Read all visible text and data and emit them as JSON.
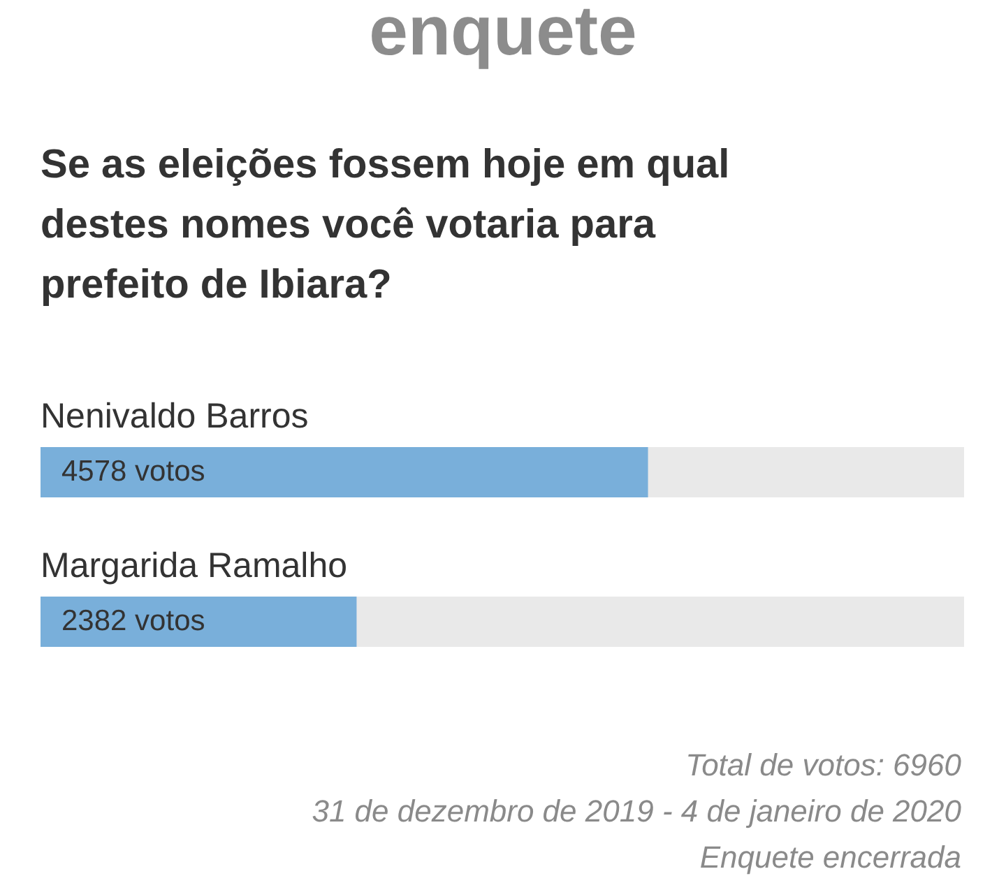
{
  "chart_data": {
    "type": "bar",
    "orientation": "horizontal",
    "title": "enquete",
    "subtitle": "Se as eleições fossem hoje em qual destes nomes você votaria para prefeito de Ibiara?",
    "categories": [
      "Nenivaldo Barros",
      "Margarida Ramalho"
    ],
    "values": [
      4578,
      2382
    ],
    "value_labels": [
      "4578 votos",
      "2382 votos"
    ],
    "color": "#79afda",
    "annotations": [
      "Total de votos: 6960",
      "31 de dezembro de 2019 - 4 de janeiro de 2020",
      "Enquete encerrada"
    ]
  }
}
